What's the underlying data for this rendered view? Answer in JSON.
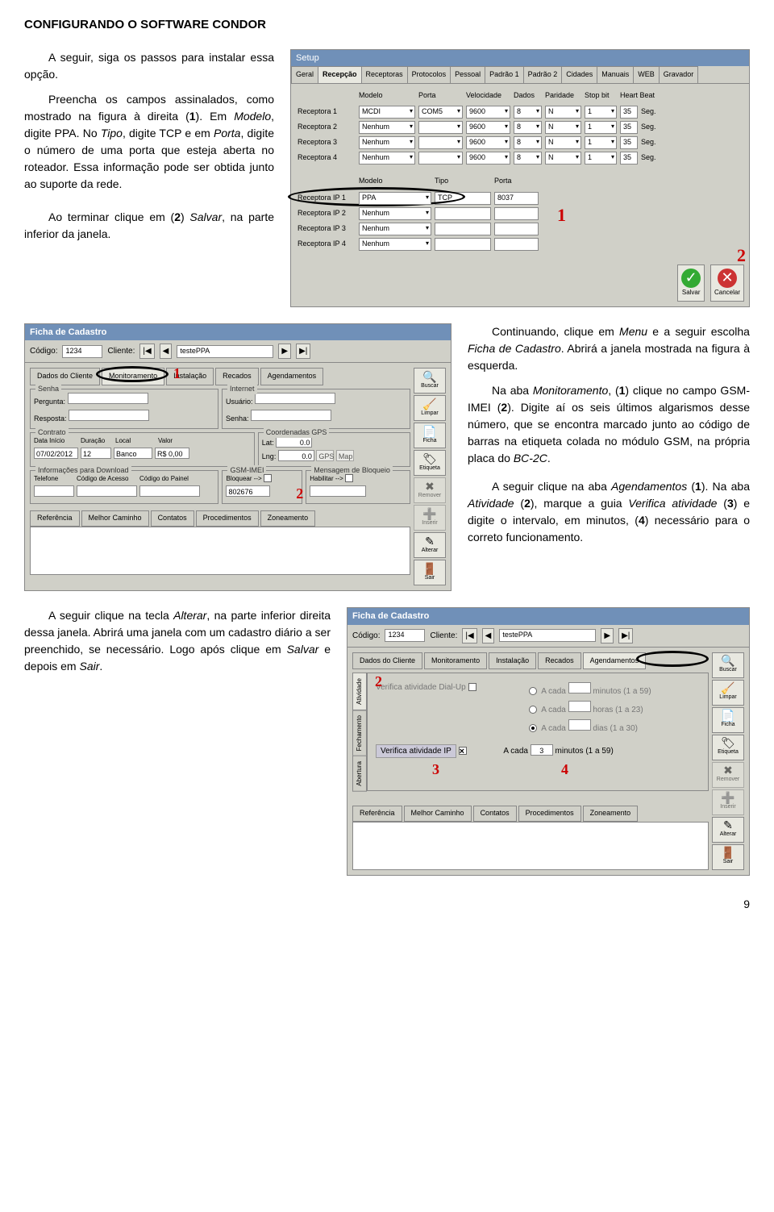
{
  "page_title": "CONFIGURANDO O SOFTWARE CONDOR",
  "para1": {
    "a": "A seguir, siga os passos para instalar essa opção.",
    "b_1": "Preencha os campos assinalados, como mostrado na figura à direita (",
    "b_bold": "1",
    "b_2": "). Em ",
    "b_i1": "Modelo",
    "b_3": ", digite PPA. No ",
    "b_i2": "Tipo",
    "b_4": ", digite TCP e em ",
    "b_i3": "Porta",
    "b_5": ", digite o número de uma porta que esteja aberta no roteador. Essa informação pode ser obtida junto ao suporte da rede."
  },
  "para2": {
    "a_1": "Ao terminar clique em (",
    "a_bold": "2",
    "a_2": ") ",
    "a_i": "Salvar",
    "a_3": ", na parte inferior da janela."
  },
  "para3": {
    "a_1": "Continuando, clique em ",
    "a_i1": "Menu",
    "a_2": " e a seguir escolha ",
    "a_i2": "Ficha de Cadastro",
    "a_3": ". Abrirá a janela mostrada na figura à esquerda.",
    "b_1": "Na aba ",
    "b_i1": "Monitoramento",
    "b_2": ", (",
    "b_b1": "1",
    "b_3": ") clique no campo GSM-IMEI (",
    "b_b2": "2",
    "b_4": "). Digite aí os seis últimos algarismos desse número, que se encontra marcado junto ao código de barras na etiqueta colada no módulo GSM, na própria placa do ",
    "b_i2": "BC-2C",
    "b_5": "."
  },
  "para4": {
    "a_1": "A seguir clique na aba ",
    "a_i1": "Agendamentos",
    "a_2": " (",
    "a_b1": "1",
    "a_3": "). Na aba ",
    "a_i2": "Atividade",
    "a_4": " (",
    "a_b2": "2",
    "a_5": "), marque a guia ",
    "a_i3": "Verifica atividade",
    "a_6": " (",
    "a_b3": "3",
    "a_7": ") e digite o intervalo, em minutos, (",
    "a_b4": "4",
    "a_8": ") necessário para o correto funcionamento."
  },
  "para5": {
    "a_1": "A seguir clique na tecla ",
    "a_i1": "Alterar",
    "a_2": ", na parte inferior direita dessa janela. Abrirá uma janela com um cadastro diário a ser preenchido, se necessário. Logo após clique em ",
    "a_i2": "Salvar",
    "a_3": " e depois em ",
    "a_i3": "Sair",
    "a_4": "."
  },
  "setup": {
    "title": "Setup",
    "tabs": [
      "Geral",
      "Recepção",
      "Receptoras",
      "Protocolos",
      "Pessoal",
      "Padrão 1",
      "Padrão 2",
      "Cidades",
      "Manuais",
      "WEB",
      "Gravador"
    ],
    "cols": [
      "Modelo",
      "Porta",
      "Velocidade",
      "Dados",
      "Paridade",
      "Stop bit",
      "Heart Beat"
    ],
    "recept": [
      {
        "lbl": "Receptora 1",
        "modelo": "MCDI",
        "porta": "COM5",
        "vel": "9600",
        "dados": "8",
        "par": "N",
        "stop": "1",
        "hb": "35",
        "seg": "Seg."
      },
      {
        "lbl": "Receptora 2",
        "modelo": "Nenhum",
        "porta": "",
        "vel": "9600",
        "dados": "8",
        "par": "N",
        "stop": "1",
        "hb": "35",
        "seg": "Seg."
      },
      {
        "lbl": "Receptora 3",
        "modelo": "Nenhum",
        "porta": "",
        "vel": "9600",
        "dados": "8",
        "par": "N",
        "stop": "1",
        "hb": "35",
        "seg": "Seg."
      },
      {
        "lbl": "Receptora 4",
        "modelo": "Nenhum",
        "porta": "",
        "vel": "9600",
        "dados": "8",
        "par": "N",
        "stop": "1",
        "hb": "35",
        "seg": "Seg."
      }
    ],
    "ip_cols": [
      "Modelo",
      "Tipo",
      "Porta"
    ],
    "ip_rows": [
      {
        "lbl": "Receptora IP 1",
        "modelo": "PPA",
        "tipo": "TCP",
        "porta": "8037"
      },
      {
        "lbl": "Receptora IP 2",
        "modelo": "Nenhum",
        "tipo": "",
        "porta": ""
      },
      {
        "lbl": "Receptora IP 3",
        "modelo": "Nenhum",
        "tipo": "",
        "porta": ""
      },
      {
        "lbl": "Receptora IP 4",
        "modelo": "Nenhum",
        "tipo": "",
        "porta": ""
      }
    ],
    "save_btn": "Salvar",
    "cancel_btn": "Cancelar",
    "annot1": "1",
    "annot2": "2"
  },
  "ficha1": {
    "title": "Ficha de Cadastro",
    "codigo_lbl": "Código:",
    "codigo": "1234",
    "cliente_lbl": "Cliente:",
    "cliente": "testePPA",
    "tabs": [
      "Dados do Cliente",
      "Monitoramento",
      "Instalação",
      "Recados",
      "Agendamentos"
    ],
    "senha_grp": "Senha",
    "pergunta_lbl": "Pergunta:",
    "resposta_lbl": "Resposta:",
    "internet_grp": "Internet",
    "usuario_lbl": "Usuário:",
    "senha_lbl": "Senha:",
    "contrato_grp": "Contrato",
    "data_inicio": "Data Início",
    "duracao": "Duração",
    "local": "Local",
    "valor": "Valor",
    "data_v": "07/02/2012",
    "dur_v": "12",
    "local_v": "Banco",
    "valor_v": "R$ 0,00",
    "gps_grp": "Coordenadas GPS",
    "lat": "Lat:",
    "lng": "Lng:",
    "lat_v": "0.0",
    "lng_v": "0.0",
    "gps_btn": "GPS",
    "map_btn": "Map",
    "info_grp": "Informações para Download",
    "telefone": "Telefone",
    "codacc": "Código de Acesso",
    "codpai": "Código do Painel",
    "gsm_grp": "GSM-IMEI",
    "bloq_lbl": "Bloquear -->",
    "bloq_v": "802676",
    "msg_grp": "Mensagem de Bloqueio",
    "hab_lbl": "Habilitar -->",
    "bottom": [
      "Referência",
      "Melhor Caminho",
      "Contatos",
      "Procedimentos",
      "Zoneamento"
    ],
    "side": [
      "Buscar",
      "Limpar",
      "Ficha",
      "Etiqueta",
      "Remover",
      "Inserir",
      "Alterar",
      "Sair"
    ],
    "annot1": "1",
    "annot2": "2"
  },
  "ficha2": {
    "title": "Ficha de Cadastro",
    "codigo_lbl": "Código:",
    "codigo": "1234",
    "cliente_lbl": "Cliente:",
    "cliente": "testePPA",
    "tabs": [
      "Dados do Cliente",
      "Monitoramento",
      "Instalação",
      "Recados",
      "Agendamentos"
    ],
    "vtabs": [
      "Atividade",
      "Fechamento",
      "Abertura"
    ],
    "verif_dial": "Verifica atividade Dial-Up",
    "verif_ip": "Verifica atividade IP",
    "acada": "A cada",
    "min1": "minutos (1 a 59)",
    "horas": "horas (1 a 23)",
    "dias": "dias (1 a 30)",
    "min2": "minutos (1 a 59)",
    "val": "3",
    "bottom": [
      "Referência",
      "Melhor Caminho",
      "Contatos",
      "Procedimentos",
      "Zoneamento"
    ],
    "side": [
      "Buscar",
      "Limpar",
      "Ficha",
      "Etiqueta",
      "Remover",
      "Inserir",
      "Alterar",
      "Sair"
    ],
    "a1": "1",
    "a2": "2",
    "a3": "3",
    "a4": "4"
  },
  "pagenum": "9"
}
